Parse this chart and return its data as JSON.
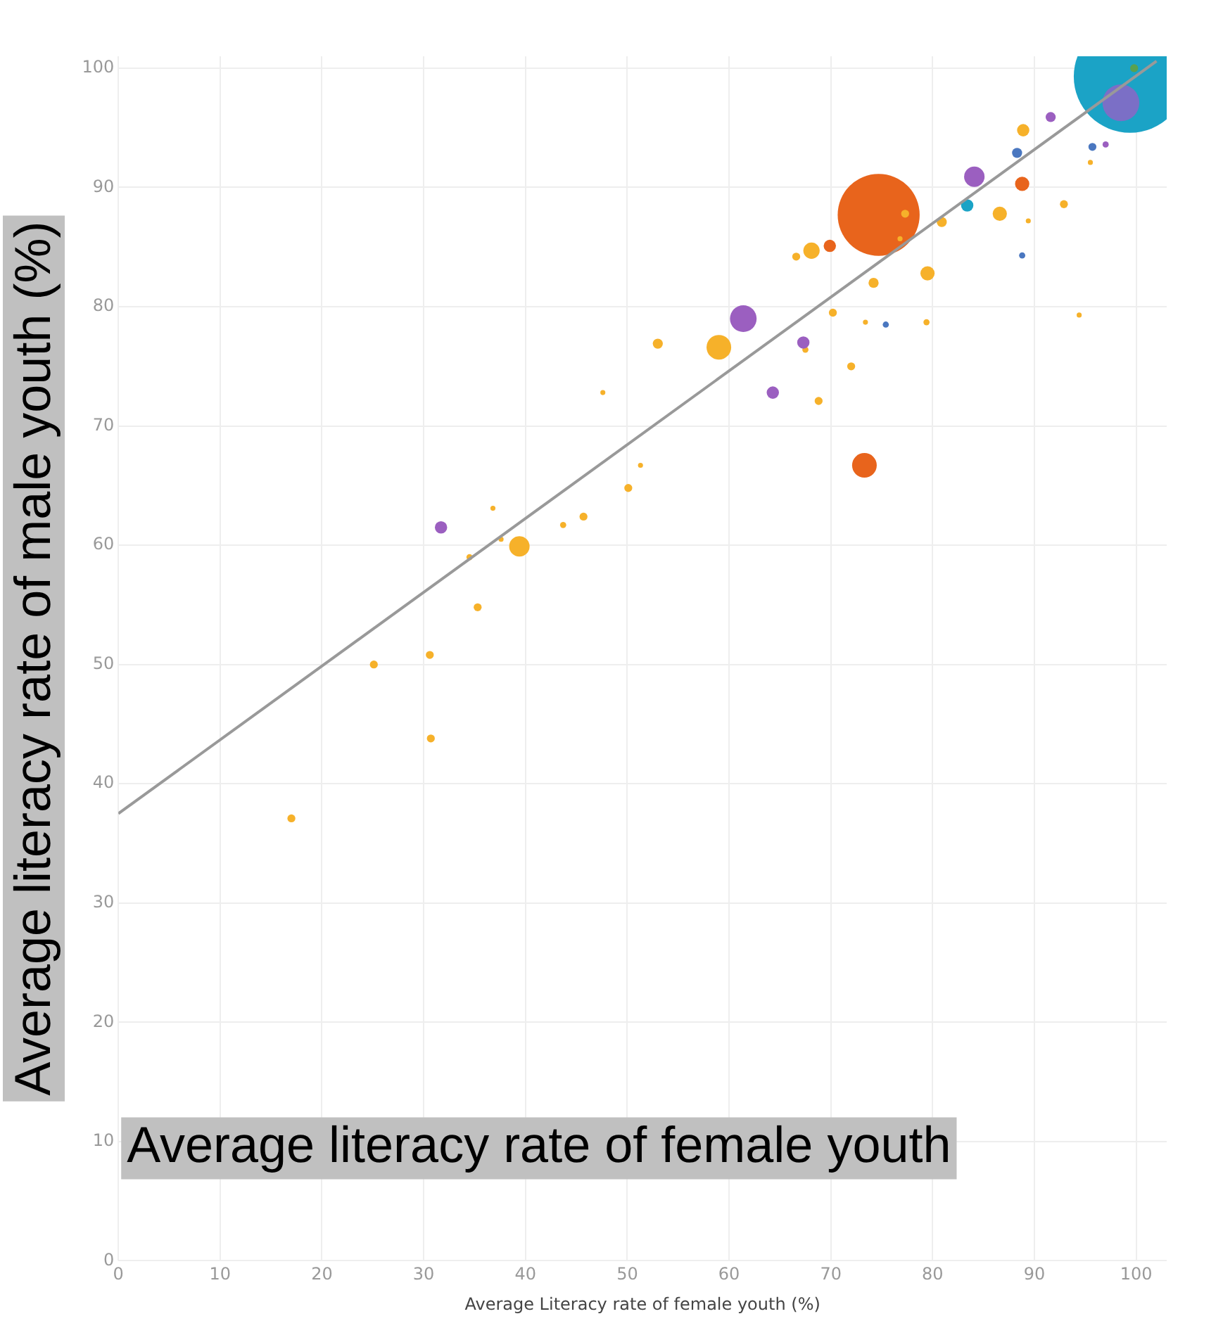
{
  "chart_data": {
    "type": "bubble",
    "xlabel": "Average Literacy rate of female youth (%)",
    "ylabel": "Average literacy rate of male youth (%)",
    "annotations": [
      "Average literacy rate of female youth"
    ],
    "xlim": [
      0,
      103
    ],
    "ylim": [
      0,
      101
    ],
    "xticks": [
      0,
      10,
      20,
      30,
      40,
      50,
      60,
      70,
      80,
      90,
      100
    ],
    "yticks": [
      0,
      10,
      20,
      30,
      40,
      50,
      60,
      70,
      80,
      90,
      100
    ],
    "grid": true,
    "legend": false,
    "series": [
      {
        "color": "#1ba3c6",
        "x": [
          83.4,
          99.4
        ],
        "values": [
          88.5,
          99.3
        ],
        "sizes": [
          0.012,
          1
        ]
      },
      {
        "color": "#e8641c",
        "x": [
          74.7,
          69.9,
          73.3,
          88.8
        ],
        "values": [
          87.7,
          85.1,
          66.7,
          90.3
        ],
        "sizes": [
          0.53,
          0.012,
          0.048,
          0.016
        ]
      },
      {
        "color": "#f6b12a",
        "x": [
          17,
          25.1,
          30.6,
          30.7,
          34.5,
          35.3,
          39.4,
          36.8,
          37.6,
          43.7,
          45.7,
          50.1,
          51.3,
          47.6,
          53,
          59,
          68.8,
          72,
          67.5,
          66.6,
          68.1,
          74.2,
          77.3,
          76.8,
          73.4,
          70.2,
          79.5,
          79.4,
          80.9,
          86.6,
          88.9,
          92.9,
          89.4,
          94.4,
          95.5
        ],
        "values": [
          37.1,
          50,
          50.8,
          43.8,
          59,
          54.8,
          59.9,
          63.1,
          60.5,
          61.7,
          62.4,
          64.8,
          66.7,
          72.8,
          76.9,
          76.6,
          72.1,
          75,
          76.4,
          84.2,
          84.7,
          82,
          87.8,
          85.7,
          78.7,
          79.5,
          82.8,
          78.7,
          87.1,
          87.8,
          94.8,
          88.6,
          87.2,
          79.3,
          92.1
        ],
        "sizes": [
          0.005,
          0.005,
          0.005,
          0.005,
          0.003,
          0.005,
          0.033,
          0.002,
          0.002,
          0.003,
          0.005,
          0.005,
          0.002,
          0.002,
          0.008,
          0.048,
          0.005,
          0.005,
          0.003,
          0.005,
          0.021,
          0.008,
          0.005,
          0.002,
          0.002,
          0.005,
          0.016,
          0.003,
          0.008,
          0.016,
          0.012,
          0.005,
          0.002,
          0.002,
          0.002
        ]
      },
      {
        "color": "#9b5fc0",
        "x": [
          31.7,
          61.4,
          64.3,
          67.3,
          84.1,
          91.6,
          97
        ],
        "values": [
          61.5,
          79,
          72.8,
          77,
          90.9,
          95.9,
          93.6
        ],
        "sizes": [
          0.012,
          0.056,
          0.012,
          0.012,
          0.033,
          0.008,
          0.003
        ]
      },
      {
        "color": "#4a77c0",
        "x": [
          75.4,
          88.3,
          88.8,
          95.7
        ],
        "values": [
          78.5,
          92.9,
          84.3,
          93.4
        ],
        "sizes": [
          0.003,
          0.008,
          0.003,
          0.005
        ]
      },
      {
        "color": "#7b6fc6",
        "x": [
          98.5
        ],
        "values": [
          97.1
        ],
        "sizes": [
          0.107
        ]
      },
      {
        "color": "#59a14f",
        "x": [
          99.8
        ],
        "values": [
          100
        ],
        "sizes": [
          0.005
        ]
      },
      {
        "type": "line",
        "color": "#999999",
        "x": [
          0,
          102
        ],
        "values": [
          37.5,
          100.6
        ]
      }
    ]
  }
}
